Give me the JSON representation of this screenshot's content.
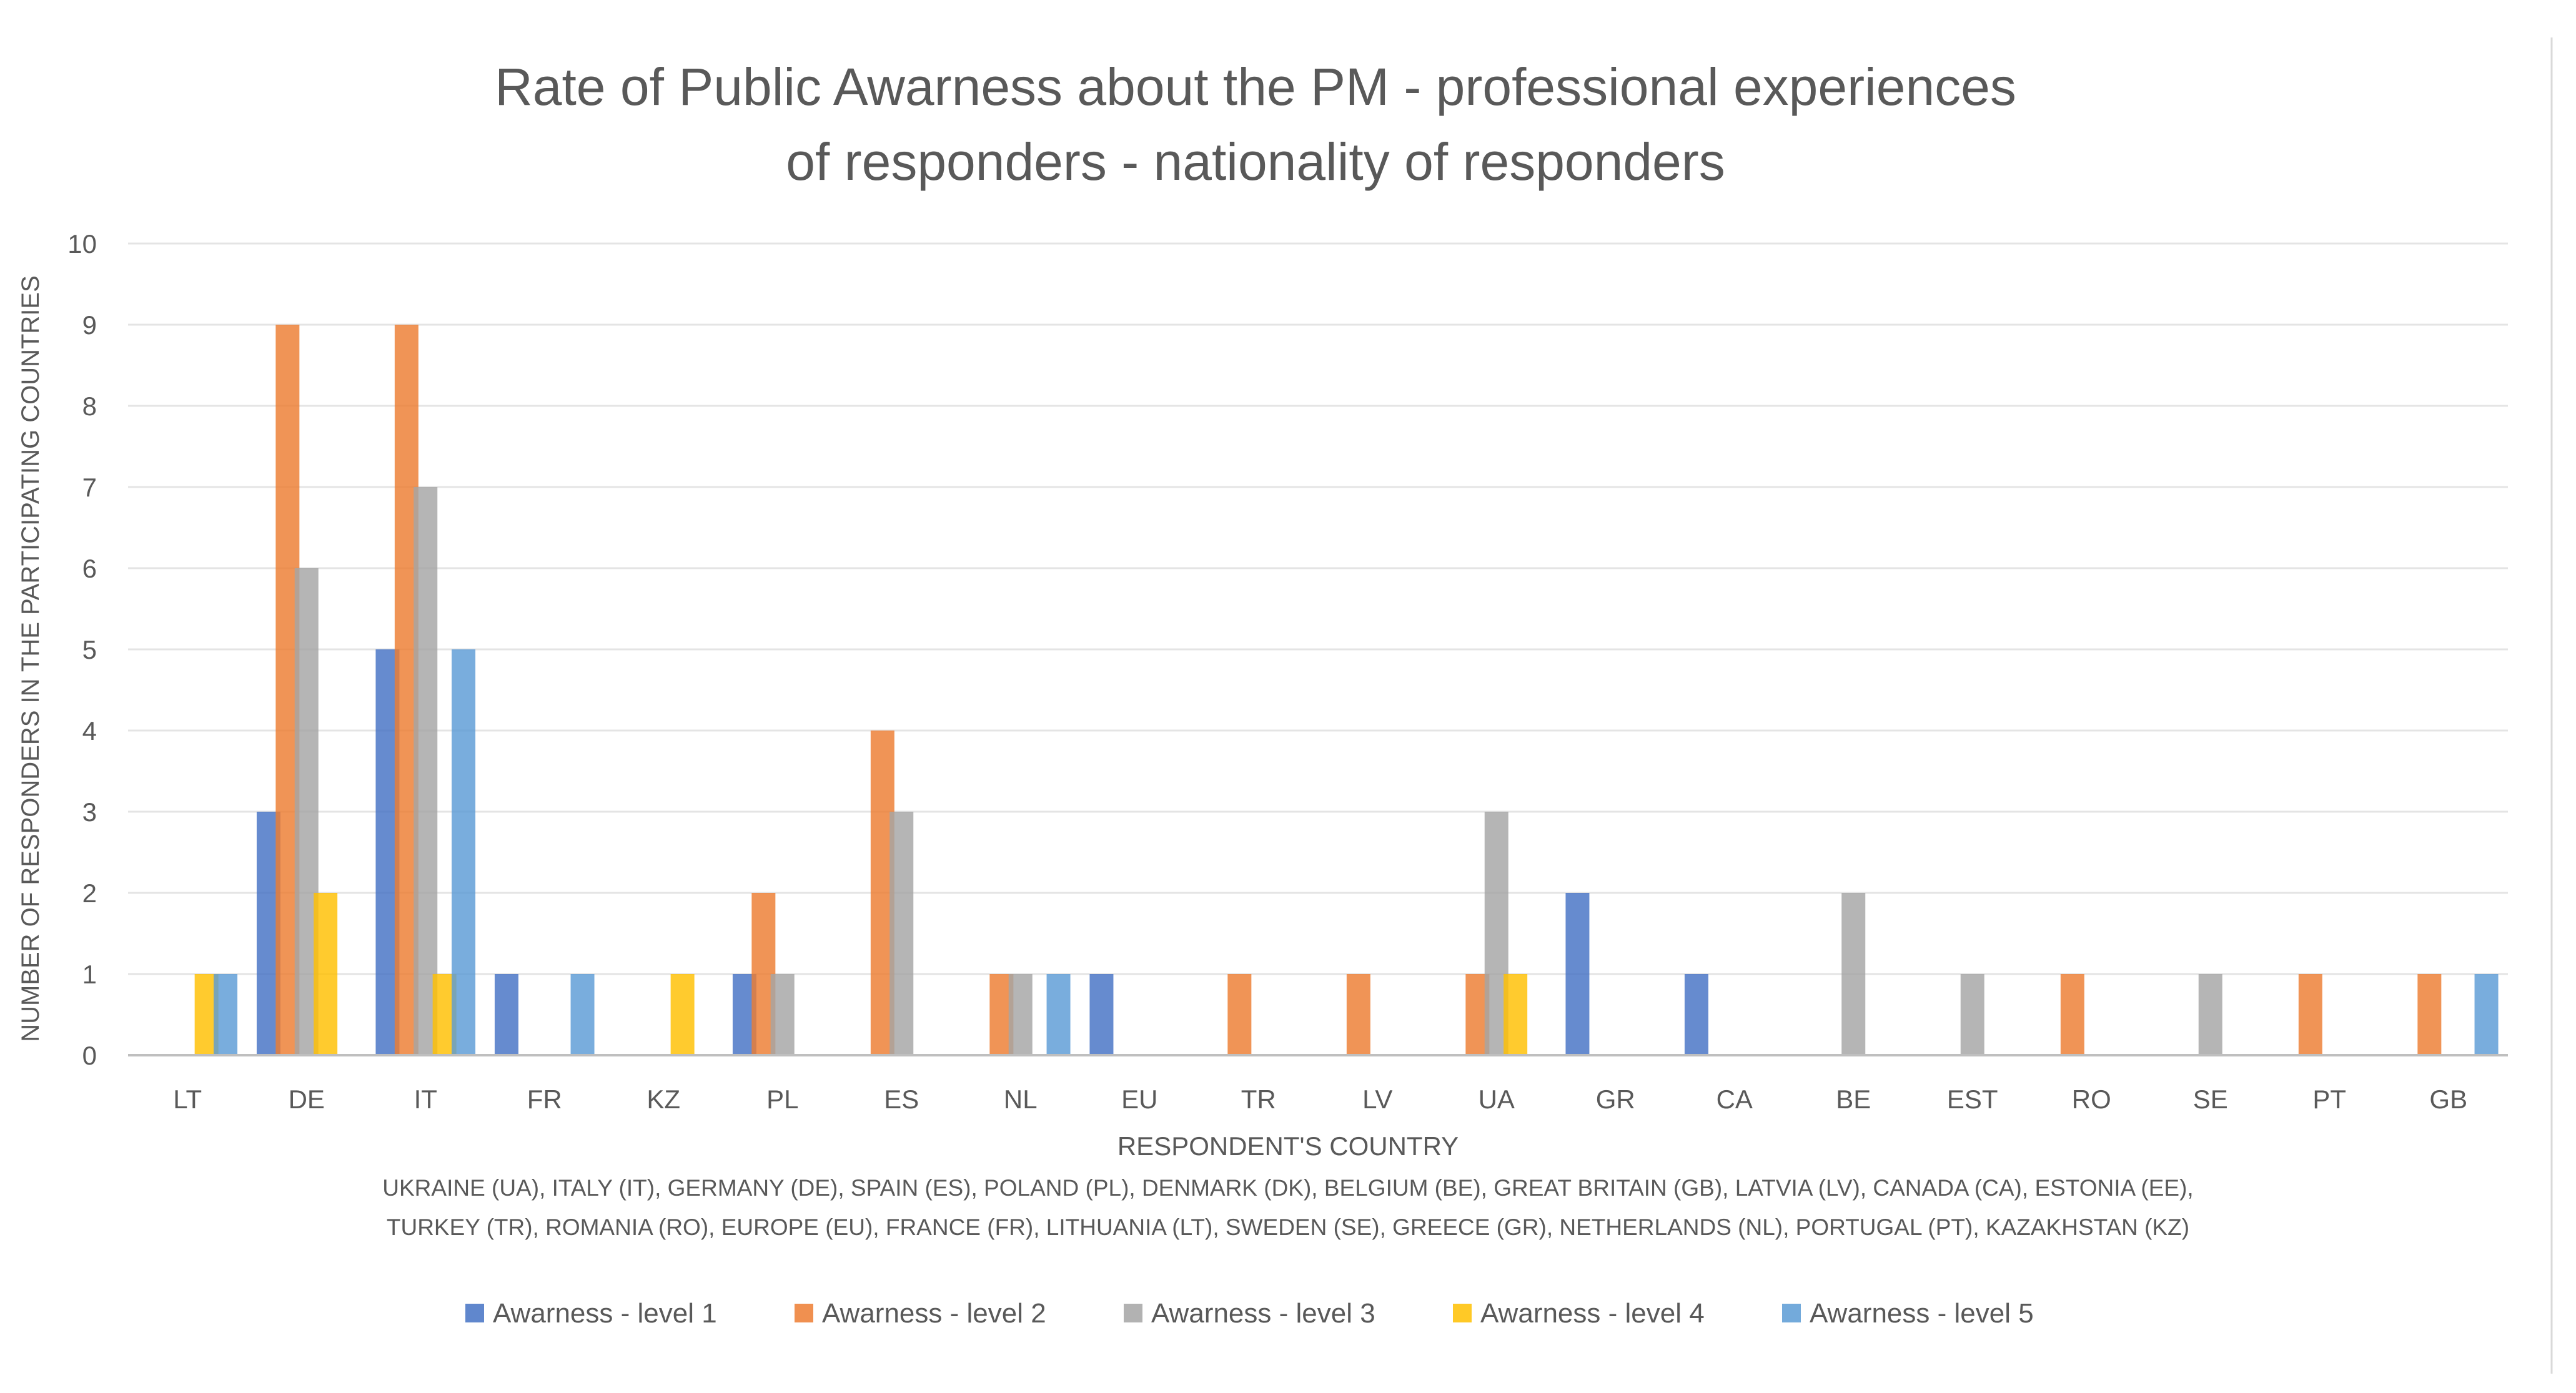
{
  "chart_data": {
    "type": "bar",
    "title_lines": [
      "Rate of Public Awarness about the PM - professional experiences",
      "of responders - nationality of responders"
    ],
    "xlabel": "RESPONDENT'S COUNTRY",
    "ylabel": "NUMBER OF RESPONDERS IN THE PARTICIPATING COUNTRIES",
    "note_lines": [
      "UKRAINE (UA), ITALY (IT), GERMANY (DE), SPAIN (ES), POLAND (PL), DENMARK (DK), BELGIUM (BE), GREAT BRITAIN (GB), LATVIA (LV), CANADA (CA), ESTONIA (EE),",
      "TURKEY (TR), ROMANIA (RO), EUROPE (EU), FRANCE (FR), LITHUANIA (LT), SWEDEN (SE), GREECE (GR), NETHERLANDS (NL), PORTUGAL (PT),  KAZAKHSTAN (KZ)"
    ],
    "ylim": [
      0,
      10
    ],
    "yticks": [
      0,
      1,
      2,
      3,
      4,
      5,
      6,
      7,
      8,
      9,
      10
    ],
    "grid": true,
    "legend_position": "bottom",
    "categories": [
      "LT",
      "DE",
      "IT",
      "FR",
      "KZ",
      "PL",
      "ES",
      "NL",
      "EU",
      "TR",
      "LV",
      "UA",
      "GR",
      "CA",
      "BE",
      "EST",
      "RO",
      "SE",
      "PT",
      "GB"
    ],
    "series": [
      {
        "name": "Awarness - level 1",
        "color": "#4472C4",
        "values": [
          0,
          3,
          5,
          1,
          0,
          1,
          0,
          0,
          1,
          0,
          0,
          0,
          2,
          1,
          0,
          0,
          0,
          0,
          0,
          0
        ]
      },
      {
        "name": "Awarness - level 2",
        "color": "#ED7D31",
        "values": [
          0,
          9,
          9,
          0,
          0,
          2,
          4,
          1,
          0,
          1,
          1,
          1,
          0,
          0,
          0,
          0,
          1,
          0,
          1,
          1
        ]
      },
      {
        "name": "Awarness - level 3",
        "color": "#A5A5A5",
        "values": [
          0,
          6,
          7,
          0,
          0,
          1,
          3,
          1,
          0,
          0,
          0,
          3,
          0,
          0,
          2,
          1,
          0,
          1,
          0,
          0
        ]
      },
      {
        "name": "Awarness - level 4",
        "color": "#FFC000",
        "values": [
          1,
          2,
          1,
          0,
          1,
          0,
          0,
          0,
          0,
          0,
          0,
          1,
          0,
          0,
          0,
          0,
          0,
          0,
          0,
          0
        ]
      },
      {
        "name": "Awarness - level 5",
        "color": "#5B9BD5",
        "values": [
          1,
          0,
          5,
          1,
          0,
          0,
          0,
          1,
          0,
          0,
          0,
          0,
          0,
          0,
          0,
          0,
          0,
          0,
          0,
          1
        ]
      }
    ]
  }
}
